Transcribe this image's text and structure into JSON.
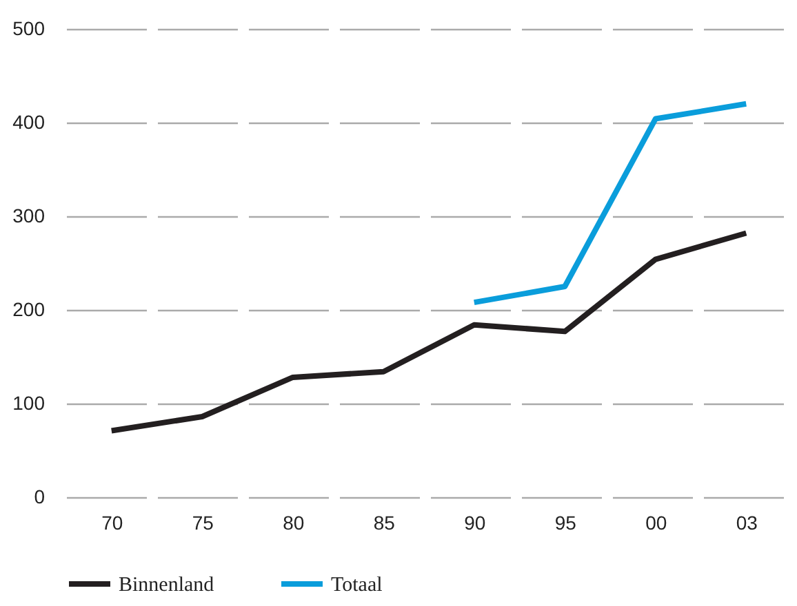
{
  "chart_data": {
    "type": "line",
    "categories": [
      "70",
      "75",
      "80",
      "85",
      "90",
      "95",
      "00",
      "03"
    ],
    "series": [
      {
        "name": "Binnenland",
        "color": "#231f20",
        "values": [
          71,
          86,
          128,
          134,
          184,
          177,
          254,
          282
        ]
      },
      {
        "name": "Totaal",
        "color": "#0a9ddb",
        "values": [
          null,
          null,
          null,
          null,
          208,
          225,
          404,
          420
        ]
      }
    ],
    "ylim": [
      0,
      500
    ],
    "yticks": [
      0,
      100,
      200,
      300,
      400,
      500
    ],
    "grid": "y",
    "legend": "bottom left",
    "marker": "none",
    "line_style": "solid"
  }
}
